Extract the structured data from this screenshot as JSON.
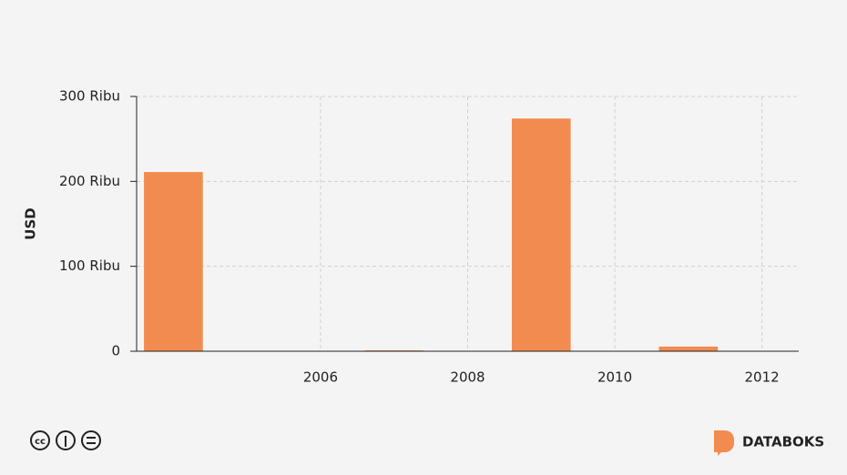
{
  "chart_data": {
    "type": "bar",
    "y_label": "USD",
    "x": [
      2004,
      2007,
      2009,
      2011
    ],
    "values": [
      211000,
      1000,
      274000,
      5500
    ],
    "color": "#f28b4f",
    "xlim": [
      2003.5,
      2012.5
    ],
    "xticks": [
      2006,
      2008,
      2010,
      2012
    ],
    "ylim": [
      0,
      300000
    ],
    "yticks": [
      0,
      {
        "value": 100000,
        "label": "100 Ribu"
      },
      {
        "value": 200000,
        "label": "200 Ribu"
      },
      {
        "value": 300000,
        "label": "300 Ribu"
      }
    ],
    "grid": true
  },
  "footer": {
    "brand": "DATABOKS"
  }
}
